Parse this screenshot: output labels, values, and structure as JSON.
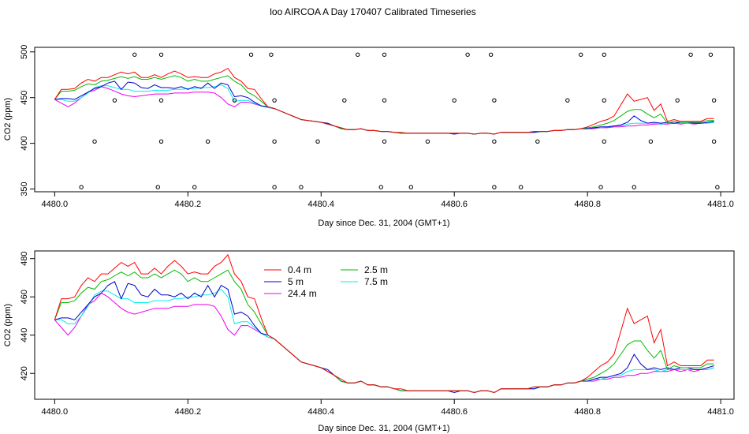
{
  "title": "loo AIRCOA A  Day 170407  Calibrated Timeseries",
  "series_meta": [
    {
      "name": "0.4 m",
      "color": "#ff0000"
    },
    {
      "name": "2.5 m",
      "color": "#00bb00"
    },
    {
      "name": "5 m",
      "color": "#0000cc"
    },
    {
      "name": "7.5 m",
      "color": "#00eeee"
    },
    {
      "name": "24.4 m",
      "color": "#ee00ee"
    }
  ],
  "chart_data": [
    {
      "type": "line",
      "xlabel": "Day since Dec. 31, 2004 (GMT+1)",
      "ylabel": "CO2 (ppm)",
      "xlim": [
        4479.97,
        4481.02
      ],
      "ylim": [
        347,
        505
      ],
      "xticks": [
        4480.0,
        4480.2,
        4480.4,
        4480.6,
        4480.8,
        4481.0
      ],
      "xtick_labels": [
        "4480.0",
        "4480.2",
        "4480.4",
        "4480.6",
        "4480.8",
        "4481.0"
      ],
      "yticks": [
        350,
        400,
        450,
        500
      ],
      "ytick_labels": [
        "350",
        "400",
        "450",
        "500"
      ],
      "legend": false,
      "points_marker": "open-circle",
      "points": [
        [
          4480.04,
          352
        ],
        [
          4480.06,
          402
        ],
        [
          4480.09,
          447
        ],
        [
          4480.12,
          497
        ],
        [
          4480.155,
          352
        ],
        [
          4480.16,
          402
        ],
        [
          4480.16,
          447
        ],
        [
          4480.16,
          497
        ],
        [
          4480.21,
          352
        ],
        [
          4480.23,
          402
        ],
        [
          4480.27,
          447
        ],
        [
          4480.295,
          497
        ],
        [
          4480.325,
          497
        ],
        [
          4480.33,
          447
        ],
        [
          4480.33,
          402
        ],
        [
          4480.33,
          352
        ],
        [
          4480.37,
          352
        ],
        [
          4480.395,
          402
        ],
        [
          4480.435,
          447
        ],
        [
          4480.455,
          497
        ],
        [
          4480.49,
          352
        ],
        [
          4480.495,
          447
        ],
        [
          4480.495,
          402
        ],
        [
          4480.495,
          497
        ],
        [
          4480.535,
          352
        ],
        [
          4480.56,
          402
        ],
        [
          4480.6,
          447
        ],
        [
          4480.62,
          497
        ],
        [
          4480.655,
          497
        ],
        [
          4480.66,
          447
        ],
        [
          4480.66,
          402
        ],
        [
          4480.66,
          352
        ],
        [
          4480.7,
          352
        ],
        [
          4480.725,
          402
        ],
        [
          4480.77,
          447
        ],
        [
          4480.79,
          497
        ],
        [
          4480.82,
          352
        ],
        [
          4480.825,
          447
        ],
        [
          4480.825,
          402
        ],
        [
          4480.825,
          497
        ],
        [
          4480.87,
          352
        ],
        [
          4480.895,
          402
        ],
        [
          4480.935,
          447
        ],
        [
          4480.955,
          497
        ],
        [
          4480.985,
          497
        ],
        [
          4480.99,
          447
        ],
        [
          4480.99,
          402
        ],
        [
          4480.995,
          352
        ]
      ]
    },
    {
      "type": "line",
      "xlabel": "Day since Dec. 31, 2004 (GMT+1)",
      "ylabel": "CO2 (ppm)",
      "xlim": [
        4479.97,
        4481.02
      ],
      "ylim": [
        406.5,
        484
      ],
      "xticks": [
        4480.0,
        4480.2,
        4480.4,
        4480.6,
        4480.8,
        4481.0
      ],
      "xtick_labels": [
        "4480.0",
        "4480.2",
        "4480.4",
        "4480.6",
        "4480.8",
        "4481.0"
      ],
      "yticks": [
        420,
        440,
        460,
        480
      ],
      "ytick_labels": [
        "420",
        "440",
        "460",
        "480"
      ],
      "legend": "top-center",
      "legend_entries": [
        "0.4 m",
        "2.5 m",
        "5 m",
        "7.5 m",
        "24.4 m"
      ]
    }
  ],
  "x": [
    4480.0,
    4480.01,
    4480.02,
    4480.03,
    4480.04,
    4480.05,
    4480.06,
    4480.07,
    4480.08,
    4480.09,
    4480.1,
    4480.11,
    4480.12,
    4480.13,
    4480.14,
    4480.15,
    4480.16,
    4480.17,
    4480.18,
    4480.19,
    4480.2,
    4480.21,
    4480.22,
    4480.23,
    4480.24,
    4480.25,
    4480.26,
    4480.27,
    4480.28,
    4480.29,
    4480.3,
    4480.31,
    4480.32,
    4480.33,
    4480.34,
    4480.35,
    4480.36,
    4480.37,
    4480.38,
    4480.39,
    4480.4,
    4480.41,
    4480.42,
    4480.43,
    4480.44,
    4480.45,
    4480.46,
    4480.47,
    4480.48,
    4480.49,
    4480.5,
    4480.51,
    4480.52,
    4480.53,
    4480.54,
    4480.55,
    4480.56,
    4480.57,
    4480.58,
    4480.59,
    4480.6,
    4480.61,
    4480.62,
    4480.63,
    4480.64,
    4480.65,
    4480.66,
    4480.67,
    4480.68,
    4480.69,
    4480.7,
    4480.71,
    4480.72,
    4480.73,
    4480.74,
    4480.75,
    4480.76,
    4480.77,
    4480.78,
    4480.79,
    4480.8,
    4480.81,
    4480.82,
    4480.83,
    4480.84,
    4480.85,
    4480.86,
    4480.87,
    4480.88,
    4480.89,
    4480.9,
    4480.91,
    4480.92,
    4480.93,
    4480.94,
    4480.95,
    4480.96,
    4480.97,
    4480.98,
    4480.99
  ],
  "series": [
    {
      "name": "0.4 m",
      "values": [
        448,
        459,
        459,
        460,
        466,
        470,
        468,
        472,
        472,
        475,
        478,
        476,
        478,
        472,
        472,
        475,
        472,
        476,
        479,
        476,
        472,
        473,
        472,
        472,
        476,
        478,
        482,
        472,
        468,
        460,
        459,
        449,
        440,
        438,
        435,
        432,
        429,
        426,
        425,
        424,
        423,
        421,
        419,
        417,
        415,
        415,
        416,
        414,
        414,
        413,
        413,
        412,
        412,
        411,
        411,
        411,
        411,
        411,
        411,
        411,
        411,
        411,
        411,
        410,
        411,
        411,
        410,
        412,
        412,
        412,
        412,
        412,
        413,
        413,
        413,
        414,
        414,
        415,
        415,
        416,
        418,
        421,
        424,
        426,
        430,
        442,
        454,
        446,
        448,
        450,
        436,
        443,
        424,
        426,
        424,
        424,
        424,
        424,
        427,
        427
      ]
    },
    {
      "name": "2.5 m",
      "values": [
        448,
        457,
        457,
        458,
        462,
        465,
        464,
        468,
        469,
        471,
        473,
        471,
        473,
        470,
        470,
        472,
        470,
        472,
        474,
        472,
        468,
        470,
        468,
        468,
        470,
        472,
        474,
        468,
        464,
        456,
        452,
        446,
        440,
        438,
        435,
        432,
        429,
        426,
        425,
        424,
        423,
        421,
        419,
        416,
        415,
        415,
        416,
        414,
        414,
        413,
        413,
        412,
        411,
        411,
        411,
        411,
        411,
        411,
        411,
        411,
        411,
        411,
        411,
        410,
        411,
        411,
        410,
        412,
        412,
        412,
        412,
        412,
        413,
        413,
        413,
        414,
        414,
        415,
        415,
        416,
        417,
        418,
        420,
        422,
        425,
        430,
        435,
        437,
        437,
        432,
        428,
        432,
        422,
        424,
        423,
        423,
        423,
        423,
        425,
        425
      ]
    },
    {
      "name": "5 m",
      "values": [
        448,
        449,
        449,
        448,
        452,
        456,
        460,
        462,
        466,
        468,
        459,
        467,
        466,
        461,
        460,
        464,
        461,
        461,
        460,
        462,
        459,
        462,
        460,
        466,
        460,
        466,
        464,
        451,
        452,
        450,
        445,
        441,
        440,
        438,
        435,
        432,
        429,
        426,
        425,
        424,
        423,
        422,
        419,
        416,
        415,
        415,
        416,
        414,
        414,
        413,
        413,
        412,
        411,
        411,
        411,
        411,
        411,
        411,
        411,
        411,
        410,
        411,
        411,
        410,
        411,
        411,
        410,
        412,
        412,
        412,
        412,
        412,
        412,
        413,
        413,
        414,
        414,
        415,
        415,
        416,
        416,
        417,
        418,
        418,
        419,
        420,
        423,
        430,
        425,
        422,
        423,
        422,
        423,
        422,
        423,
        423,
        422,
        422,
        423,
        424
      ]
    },
    {
      "name": "7.5 m",
      "values": [
        448,
        448,
        446,
        446,
        450,
        455,
        461,
        463,
        463,
        461,
        459,
        459,
        457,
        457,
        457,
        458,
        458,
        458,
        459,
        459,
        460,
        460,
        461,
        461,
        462,
        464,
        460,
        446,
        447,
        447,
        444,
        441,
        439,
        438,
        435,
        432,
        429,
        426,
        425,
        424,
        423,
        421,
        419,
        416,
        415,
        415,
        416,
        414,
        414,
        413,
        413,
        412,
        411,
        411,
        411,
        411,
        411,
        411,
        411,
        411,
        411,
        411,
        411,
        410,
        411,
        411,
        410,
        412,
        412,
        412,
        412,
        412,
        412,
        413,
        413,
        414,
        414,
        415,
        415,
        416,
        416,
        417,
        417,
        418,
        419,
        419,
        421,
        422,
        422,
        422,
        422,
        421,
        422,
        422,
        422,
        422,
        422,
        422,
        422,
        423
      ]
    },
    {
      "name": "24.4 m",
      "values": [
        448,
        444,
        440,
        444,
        450,
        456,
        458,
        462,
        460,
        457,
        454,
        452,
        451,
        452,
        453,
        454,
        454,
        454,
        455,
        455,
        455,
        456,
        456,
        456,
        455,
        450,
        443,
        440,
        445,
        445,
        443,
        441,
        439,
        438,
        435,
        432,
        429,
        426,
        425,
        424,
        423,
        421,
        419,
        416,
        415,
        415,
        416,
        414,
        414,
        413,
        413,
        412,
        411,
        411,
        411,
        411,
        411,
        411,
        411,
        411,
        411,
        411,
        411,
        410,
        411,
        411,
        410,
        412,
        412,
        412,
        412,
        412,
        412,
        413,
        413,
        414,
        414,
        415,
        415,
        416,
        416,
        416,
        417,
        417,
        418,
        418,
        419,
        419,
        420,
        420,
        421,
        421,
        421,
        422,
        421,
        422,
        421,
        422,
        422,
        423
      ]
    }
  ]
}
